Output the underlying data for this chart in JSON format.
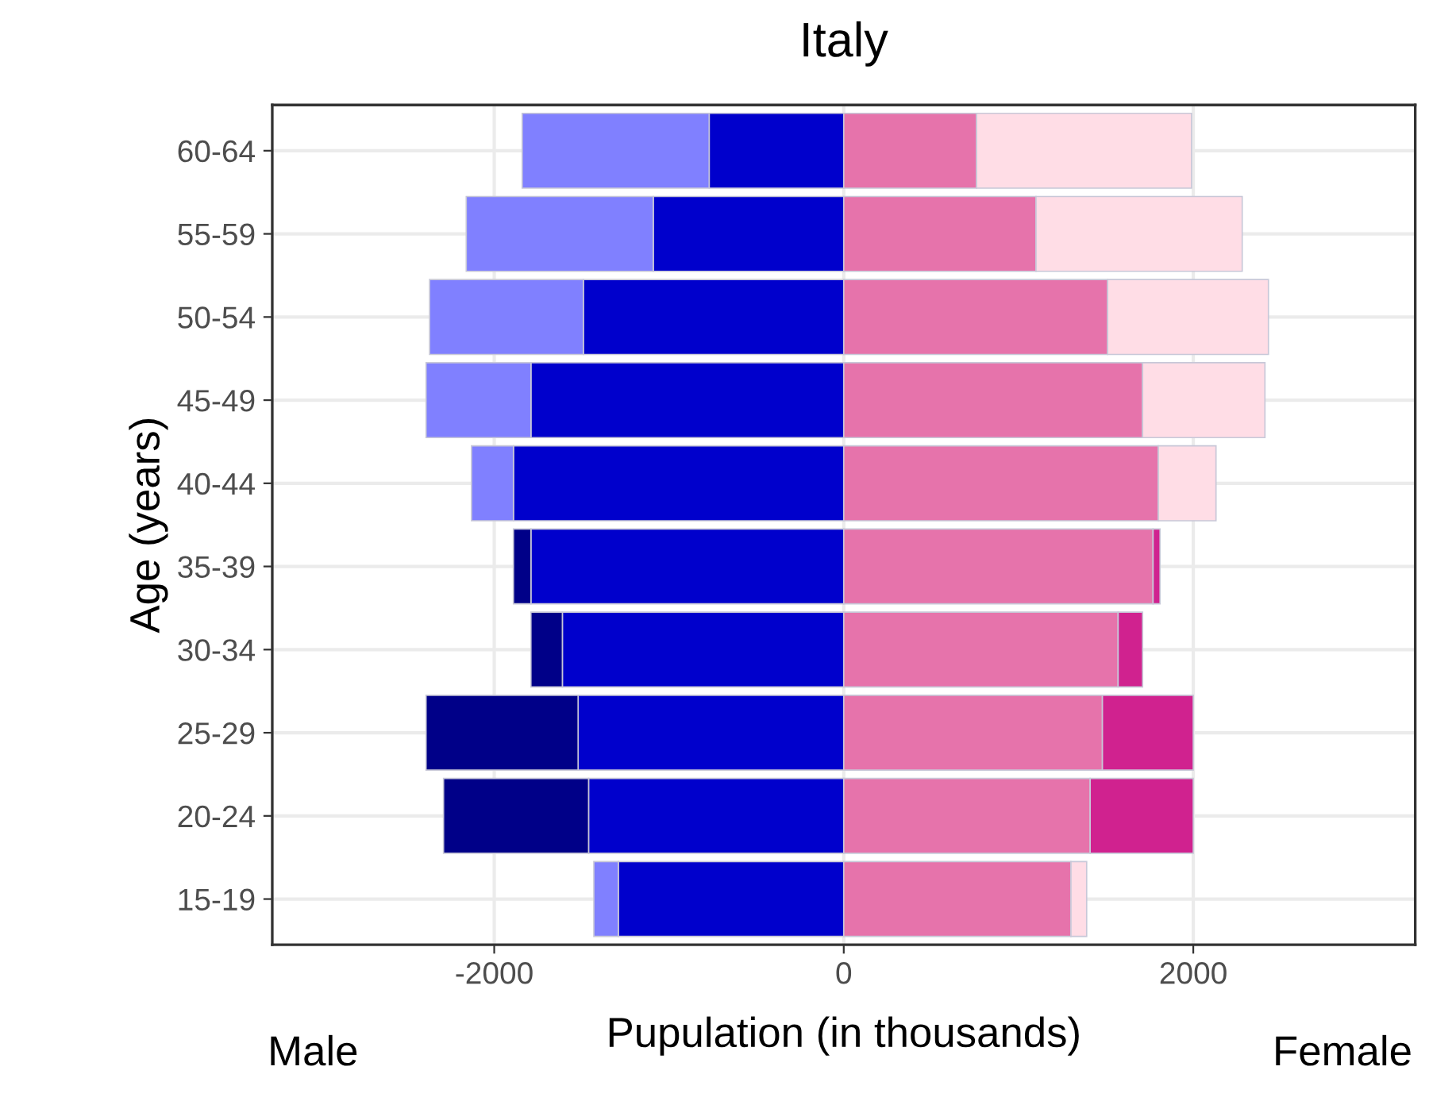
{
  "chart_data": {
    "type": "bar",
    "orientation": "horizontal",
    "stacked": true,
    "title": "Italy",
    "xlabel": "Pupulation (in thousands)",
    "ylabel": "Age (years)",
    "annotations": [
      "Male",
      "Female"
    ],
    "categories": [
      "60-64",
      "55-59",
      "50-54",
      "45-49",
      "40-44",
      "35-39",
      "30-34",
      "25-29",
      "20-24",
      "15-19"
    ],
    "series": [
      {
        "color": "#0000cc",
        "values": [
          -770,
          -1090,
          -1490,
          -1790,
          -1890,
          -1790,
          -1610,
          -1520,
          -1460,
          -1290
        ]
      },
      {
        "color": "#8080ff",
        "values": [
          -1070,
          -1070,
          -880,
          -600,
          -240,
          null,
          null,
          null,
          null,
          -140
        ]
      },
      {
        "color": "#000088",
        "values": [
          null,
          null,
          null,
          null,
          null,
          -100,
          -180,
          -870,
          -830,
          null
        ]
      },
      {
        "color": "#e673ab",
        "values": [
          760,
          1100,
          1510,
          1710,
          1800,
          1770,
          1570,
          1480,
          1410,
          1300
        ]
      },
      {
        "color": "#ffdde6",
        "values": [
          1230,
          1180,
          920,
          700,
          330,
          null,
          null,
          null,
          null,
          90
        ]
      },
      {
        "color": "#d0228f",
        "values": [
          null,
          null,
          null,
          null,
          null,
          40,
          140,
          520,
          590,
          null
        ]
      }
    ],
    "xlim": [
      -3270,
      3270
    ],
    "xticks": [
      -2000,
      0,
      2000
    ],
    "grid": true
  }
}
